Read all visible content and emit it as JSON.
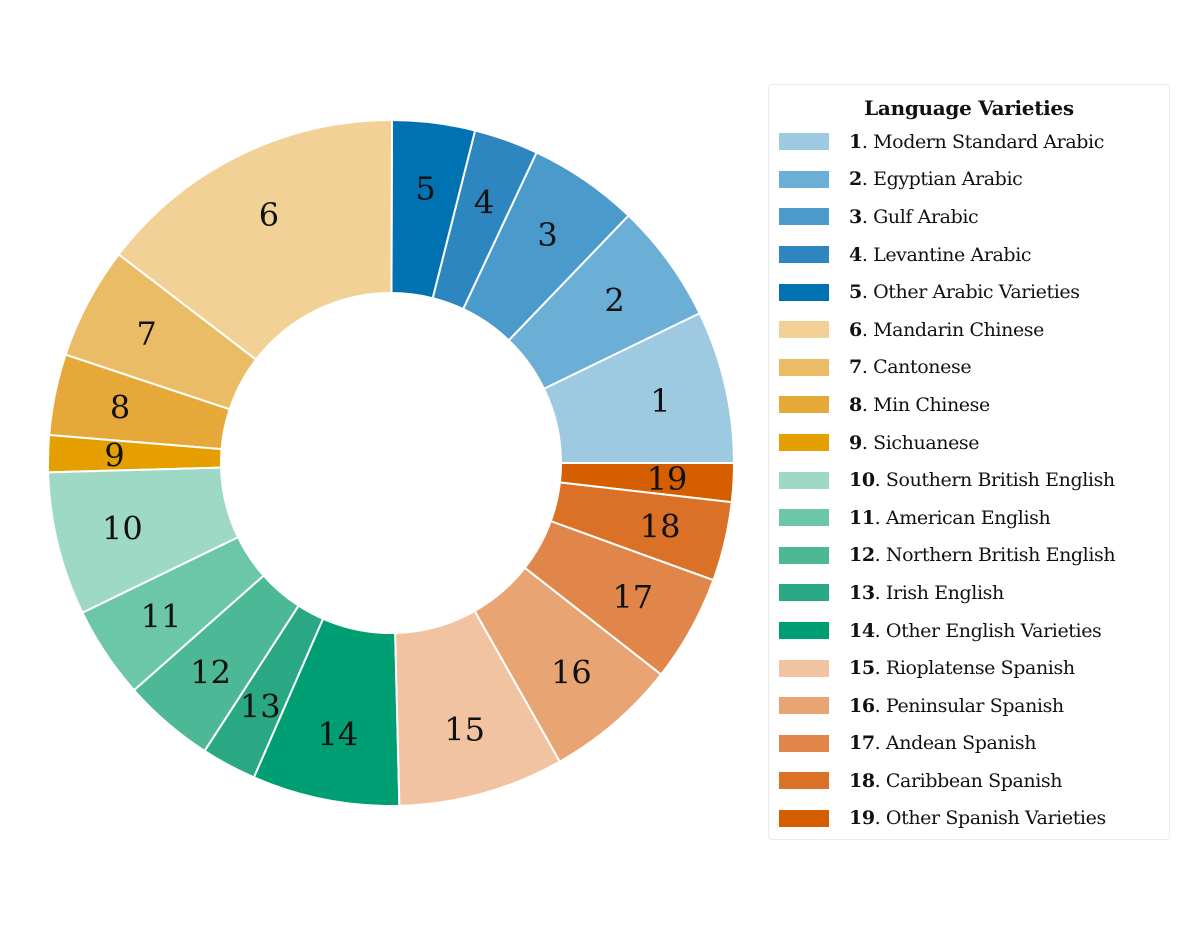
{
  "chart_data": {
    "type": "pie",
    "donut": true,
    "legend": {
      "title": "Language Varieties",
      "placement": "right"
    },
    "slices": [
      {
        "num": "1",
        "label": "Modern Standard Arabic",
        "value": 8.3,
        "color": "#9ecae1"
      },
      {
        "num": "2",
        "label": "Egyptian Arabic",
        "value": 6.5,
        "color": "#6baed6"
      },
      {
        "num": "3",
        "label": "Gulf Arabic",
        "value": 6.0,
        "color": "#4a9bcb"
      },
      {
        "num": "4",
        "label": "Levantine Arabic",
        "value": 3.5,
        "color": "#2d86c0"
      },
      {
        "num": "5",
        "label": "Other Arabic Varieties",
        "value": 4.5,
        "color": "#0072b2"
      },
      {
        "num": "6",
        "label": "Mandarin Chinese",
        "value": 16.9,
        "color": "#f1d196"
      },
      {
        "num": "7",
        "label": "Cantonese",
        "value": 6.1,
        "color": "#ebbc66"
      },
      {
        "num": "8",
        "label": "Min Chinese",
        "value": 4.4,
        "color": "#e6a839"
      },
      {
        "num": "9",
        "label": "Sichuanese",
        "value": 2.0,
        "color": "#e69f00"
      },
      {
        "num": "10",
        "label": "Southern British English",
        "value": 7.8,
        "color": "#9dd9c5"
      },
      {
        "num": "11",
        "label": "American English",
        "value": 5.0,
        "color": "#6cc7a9"
      },
      {
        "num": "12",
        "label": "Northern British English",
        "value": 5.0,
        "color": "#4db895"
      },
      {
        "num": "13",
        "label": "Irish English",
        "value": 3.0,
        "color": "#2aa884"
      },
      {
        "num": "14",
        "label": "Other English Varieties",
        "value": 8.0,
        "color": "#009e73"
      },
      {
        "num": "15",
        "label": "Rioplatense Spanish",
        "value": 9.0,
        "color": "#f2c3a1"
      },
      {
        "num": "16",
        "label": "Peninsular Spanish",
        "value": 7.2,
        "color": "#e9a473"
      },
      {
        "num": "17",
        "label": "Andean Spanish",
        "value": 5.8,
        "color": "#e0864a"
      },
      {
        "num": "18",
        "label": "Caribbean Spanish",
        "value": 4.3,
        "color": "#db7027"
      },
      {
        "num": "19",
        "label": "Other Spanish Varieties",
        "value": 2.1,
        "color": "#d55e00"
      }
    ]
  }
}
